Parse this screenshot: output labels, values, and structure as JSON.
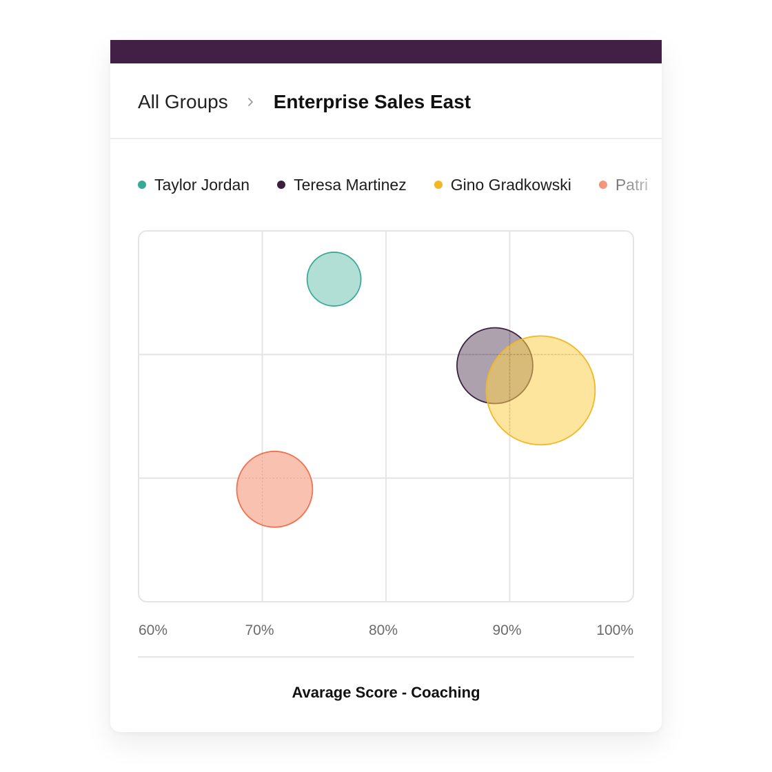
{
  "header": {
    "accent_color": "#421f45"
  },
  "breadcrumb": {
    "root": "All Groups",
    "separator_icon": "chevron-right-icon",
    "current": "Enterprise Sales East"
  },
  "chart_data": {
    "type": "scatter",
    "variant": "bubble",
    "title": "",
    "xlabel": "Avarage Score - Coaching",
    "ylabel": "",
    "xlim": [
      60,
      100
    ],
    "x_ticks": [
      "60%",
      "70%",
      "80%",
      "90%",
      "100%"
    ],
    "ylim": [
      0,
      3
    ],
    "grid": true,
    "legend_position": "top",
    "series": [
      {
        "name": "Taylor Jordan",
        "x": 75.8,
        "y": 2.61,
        "size": 39,
        "color": "#38a994",
        "fill": "#b1dfd6"
      },
      {
        "name": "Teresa Martinez",
        "x": 88.8,
        "y": 1.91,
        "size": 55,
        "color": "#3c1f3f",
        "fill": "rgba(60,31,63,0.42)"
      },
      {
        "name": "Gino Gradkowski",
        "x": 92.5,
        "y": 1.71,
        "size": 79,
        "color": "#f3b723",
        "fill": "rgba(252,207,78,0.55)"
      },
      {
        "name": "Patri",
        "x": 71.0,
        "y": 0.91,
        "size": 55,
        "color": "#f0714f",
        "fill": "#f9c1b0"
      }
    ]
  }
}
